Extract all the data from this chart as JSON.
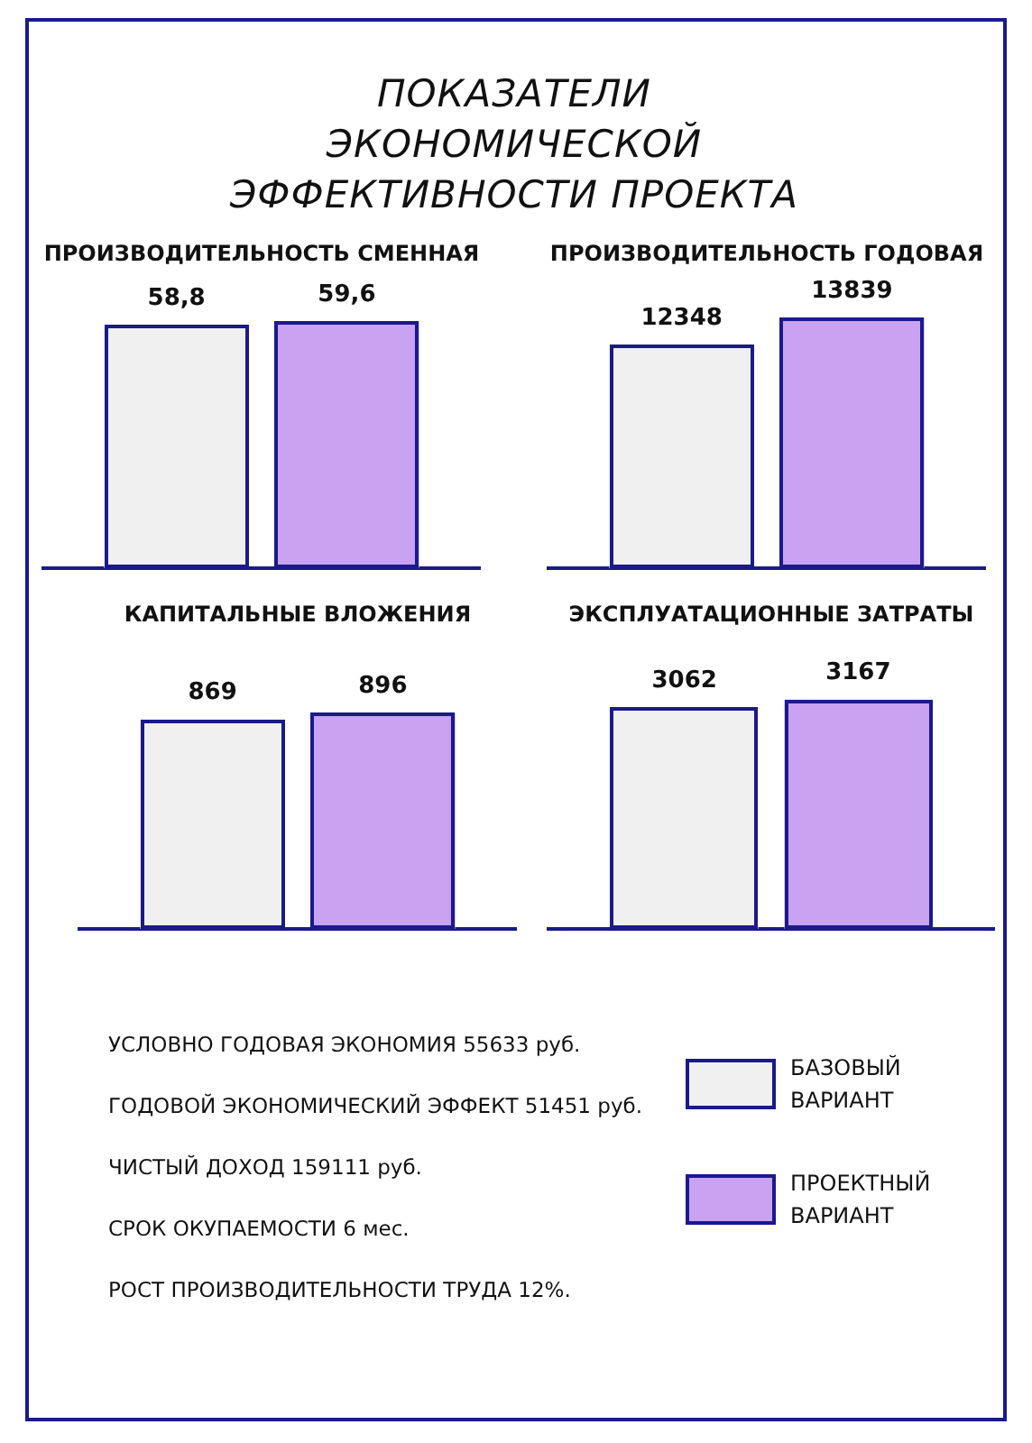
{
  "chart_data": [
    {
      "type": "other",
      "title": "ПОКАЗАТЕЛИ ЭКОНОМИЧЕСКОЙ ЭФФЕКТИВНОСТИ ПРОЕКТА"
    },
    {
      "type": "bar",
      "title": "ПРОИЗВОДИТЕЛЬНОСТЬ СМЕННАЯ",
      "categories": [
        null
      ],
      "series": [
        {
          "color": "#f0f0f0",
          "values": [
            58.8
          ],
          "value_labels": [
            "58,8"
          ]
        },
        {
          "color": "#c9a2f2",
          "values": [
            59.6
          ],
          "value_labels": [
            "59,6"
          ]
        }
      ]
    },
    {
      "type": "bar",
      "title": "ПРОИЗВОДИТЕЛЬНОСТЬ ГОДОВАЯ",
      "categories": [
        null
      ],
      "series": [
        {
          "color": "#f0f0f0",
          "values": [
            12348
          ],
          "value_labels": [
            "12348"
          ]
        },
        {
          "color": "#c9a2f2",
          "values": [
            13839
          ],
          "value_labels": [
            "13839"
          ]
        }
      ]
    },
    {
      "type": "bar",
      "title": "КАПИТАЛЬНЫЕ ВЛОЖЕНИЯ",
      "categories": [
        null
      ],
      "series": [
        {
          "color": "#f0f0f0",
          "values": [
            869
          ],
          "value_labels": [
            "869"
          ]
        },
        {
          "color": "#c9a2f2",
          "values": [
            896
          ],
          "value_labels": [
            "896"
          ]
        }
      ]
    },
    {
      "type": "bar",
      "title": "ЭКСПЛУАТАЦИОННЫЕ ЗАТРАТЫ",
      "categories": [
        null
      ],
      "legend": "bottom",
      "series": [
        {
          "name": "БАЗОВЫЙ ВАРИАНТ",
          "color": "#f0f0f0",
          "values": [
            3062
          ],
          "value_labels": [
            "3062"
          ]
        },
        {
          "name": "ПРОЕКТНЫЙ ВАРИАНТ",
          "color": "#c9a2f2",
          "values": [
            3167
          ],
          "value_labels": [
            "3167"
          ]
        }
      ]
    },
    {
      "type": "other",
      "annotations": [
        "УСЛОВНО ГОДОВАЯ ЭКОНОМИЯ 55633 руб.",
        "ГОДОВОЙ ЭКОНОМИЧЕСКИЙ ЭФФЕКТ 51451 руб.",
        "ЧИСТЫЙ ДОХОД 159111 руб.",
        "СРОК ОКУПАЕМОСТИ 6 мес.",
        "РОСТ ПРОИЗВОДИТЕЛЬНОСТИ ТРУДА 12%."
      ]
    }
  ]
}
